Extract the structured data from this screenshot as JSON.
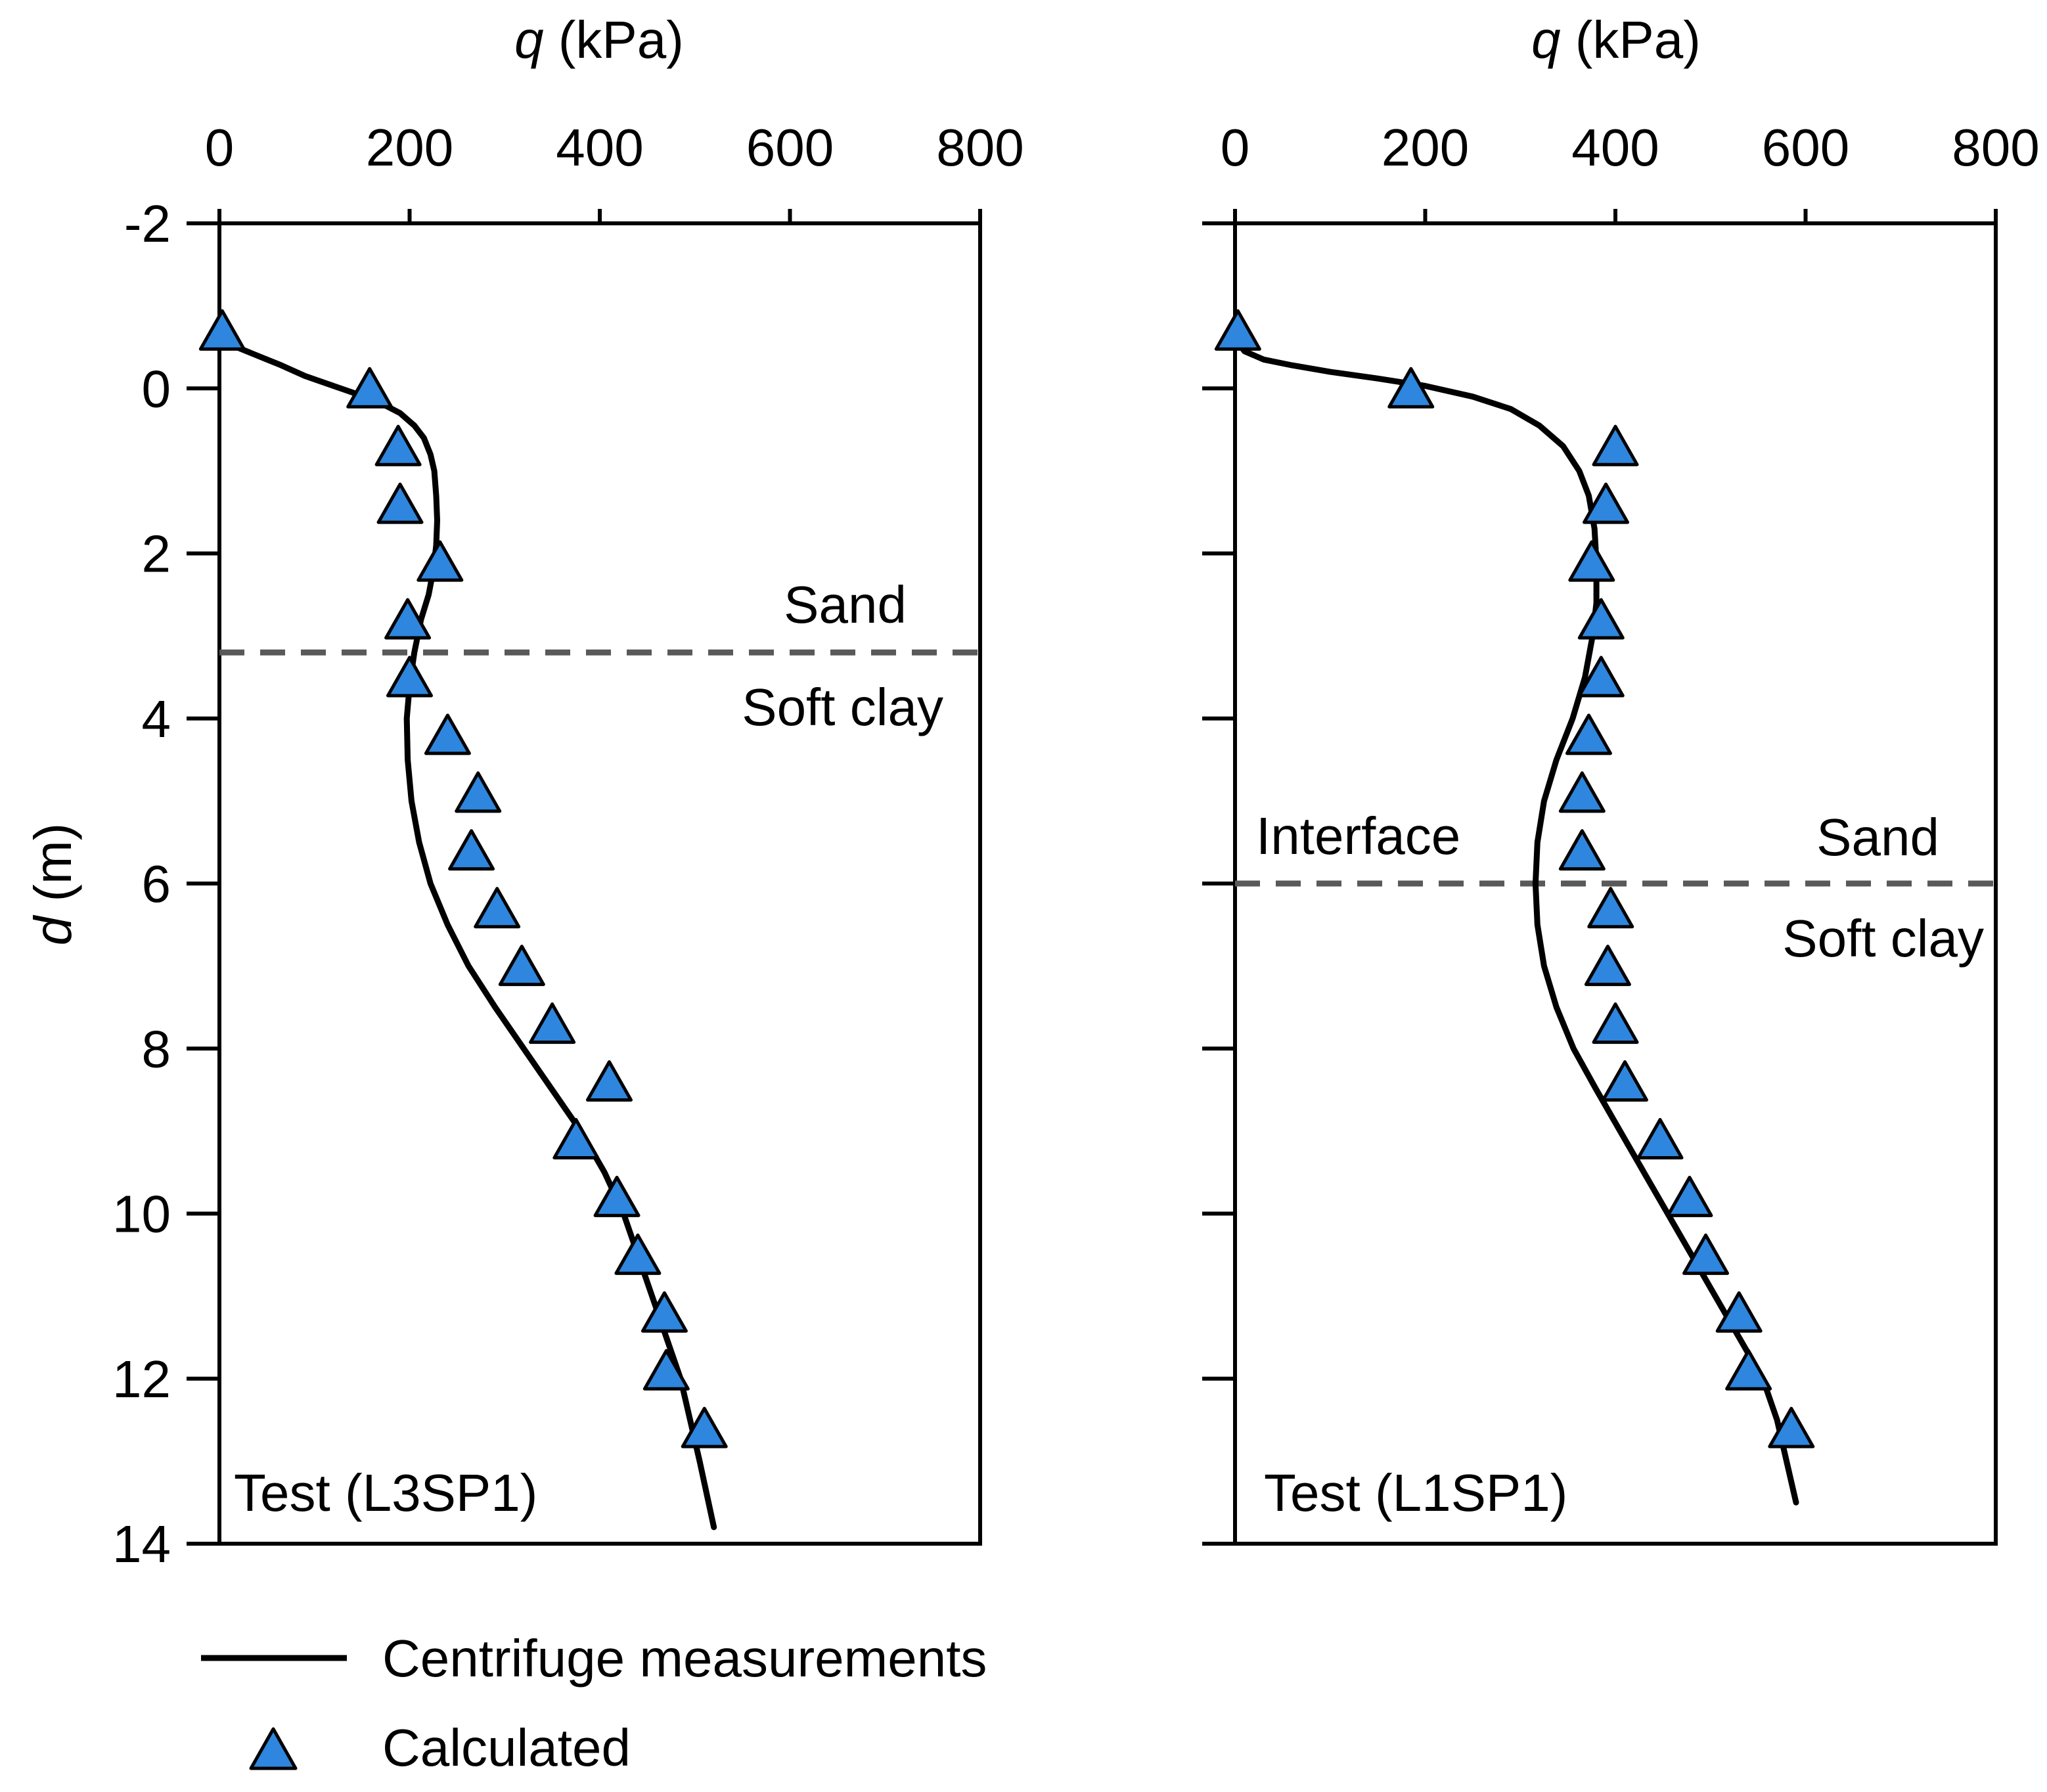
{
  "figure": {
    "y_axis_label_italic": "d",
    "y_axis_label_unit": " (m)",
    "legend": {
      "line_label": "Centrifuge measurements",
      "marker_label": "Calculated"
    },
    "colors": {
      "marker_fill": "#2e86de",
      "line": "#000000",
      "interface": "#595959",
      "axes": "#000000"
    }
  },
  "chart_data": [
    {
      "type": "line",
      "panel": "left",
      "title": "",
      "xlabel_italic": "q",
      "xlabel_unit": " (kPa)",
      "xlim": [
        0,
        800
      ],
      "ylim": [
        -2,
        14
      ],
      "y_inverted": true,
      "x_ticks": [
        "0",
        "200",
        "400",
        "600",
        "800"
      ],
      "y_ticks": [
        "-2",
        "0",
        "2",
        "4",
        "6",
        "8",
        "10",
        "12",
        "14"
      ],
      "test_label": "Test (L3SP1)",
      "interface": {
        "depth": 3.2,
        "label_upper": "Sand",
        "label_lower": "Soft clay",
        "label_interface": ""
      },
      "series": [
        {
          "name": "Centrifuge measurements",
          "kind": "line",
          "q": [
            0,
            8,
            18,
            35,
            50,
            65,
            90,
            115,
            140,
            165,
            190,
            205,
            215,
            222,
            226,
            228,
            229,
            228,
            225,
            220,
            212,
            205,
            200,
            197,
            198,
            202,
            210,
            222,
            240,
            262,
            290,
            320,
            350,
            380,
            405,
            425,
            440,
            455,
            470,
            485,
            495,
            505,
            520
          ],
          "d": [
            -0.7,
            -0.6,
            -0.5,
            -0.42,
            -0.35,
            -0.28,
            -0.15,
            -0.05,
            0.05,
            0.15,
            0.3,
            0.45,
            0.6,
            0.8,
            1.0,
            1.3,
            1.6,
            1.9,
            2.2,
            2.5,
            2.8,
            3.2,
            3.6,
            4.0,
            4.5,
            5.0,
            5.5,
            6.0,
            6.5,
            7.0,
            7.5,
            8.0,
            8.5,
            9.0,
            9.5,
            10.0,
            10.5,
            11.0,
            11.5,
            12.0,
            12.5,
            13.0,
            13.8
          ]
        },
        {
          "name": "Calculated",
          "kind": "marker",
          "q": [
            3,
            158,
            188,
            190,
            232,
            198,
            200,
            240,
            272,
            265,
            292,
            318,
            350,
            410,
            375,
            418,
            440,
            468,
            470,
            510
          ],
          "d": [
            -0.7,
            0.0,
            0.7,
            1.4,
            2.1,
            2.8,
            3.5,
            4.2,
            4.9,
            5.6,
            6.3,
            7.0,
            7.7,
            8.4,
            9.1,
            9.8,
            10.5,
            11.2,
            11.9,
            12.6
          ]
        }
      ]
    },
    {
      "type": "line",
      "panel": "right",
      "title": "",
      "xlabel_italic": "q",
      "xlabel_unit": " (kPa)",
      "xlim": [
        0,
        800
      ],
      "ylim": [
        -2,
        14
      ],
      "y_inverted": true,
      "x_ticks": [
        "0",
        "200",
        "400",
        "600",
        "800"
      ],
      "test_label": "Test (L1SP1)",
      "interface": {
        "depth": 6.0,
        "label_upper": "Sand",
        "label_lower": "Soft clay",
        "label_interface": "Interface"
      },
      "series": [
        {
          "name": "Centrifuge measurements",
          "kind": "line",
          "q": [
            0,
            10,
            30,
            60,
            100,
            150,
            200,
            250,
            290,
            320,
            345,
            362,
            372,
            378,
            380,
            380,
            376,
            368,
            355,
            338,
            325,
            318,
            316,
            318,
            325,
            338,
            356,
            380,
            405,
            430,
            455,
            480,
            505,
            530,
            555,
            570,
            590
          ],
          "d": [
            -0.6,
            -0.45,
            -0.35,
            -0.28,
            -0.2,
            -0.12,
            -0.03,
            0.1,
            0.25,
            0.45,
            0.7,
            1.0,
            1.3,
            1.7,
            2.1,
            2.6,
            3.0,
            3.5,
            4.0,
            4.5,
            5.0,
            5.5,
            6.0,
            6.5,
            7.0,
            7.5,
            8.0,
            8.5,
            9.0,
            9.5,
            10.0,
            10.5,
            11.0,
            11.5,
            12.0,
            12.5,
            13.5
          ]
        },
        {
          "name": "Calculated",
          "kind": "marker",
          "q": [
            3,
            185,
            400,
            390,
            375,
            385,
            385,
            372,
            365,
            365,
            395,
            392,
            400,
            410,
            447,
            478,
            495,
            530,
            540,
            585
          ],
          "d": [
            -0.7,
            0.0,
            0.7,
            1.4,
            2.1,
            2.8,
            3.5,
            4.2,
            4.9,
            5.6,
            6.3,
            7.0,
            7.7,
            8.4,
            9.1,
            9.8,
            10.5,
            11.2,
            11.9,
            12.6
          ]
        }
      ]
    }
  ]
}
